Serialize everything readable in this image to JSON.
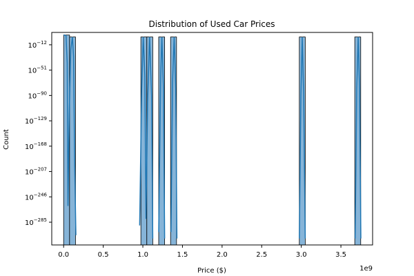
{
  "chart_data": {
    "type": "bar",
    "subtype": "histogram-with-kde",
    "title": "Distribution of Used Car Prices",
    "xlabel": "Price ($)",
    "ylabel": "Count",
    "x_offset_label": "1e9",
    "y_scale": "log",
    "xlim": [
      -150000000,
      3900000000
    ],
    "ylim_log10": [
      -320,
      7
    ],
    "x_ticks": [
      {
        "value": 0,
        "label": "0.0"
      },
      {
        "value": 500000000,
        "label": "0.5"
      },
      {
        "value": 1000000000,
        "label": "1.0"
      },
      {
        "value": 1500000000,
        "label": "1.5"
      },
      {
        "value": 2000000000,
        "label": "2.0"
      },
      {
        "value": 2500000000,
        "label": "2.5"
      },
      {
        "value": 3000000000,
        "label": "3.0"
      },
      {
        "value": 3500000000,
        "label": "3.5"
      }
    ],
    "y_ticks": [
      {
        "exp": -12,
        "base": "10",
        "label": "−12"
      },
      {
        "exp": -51,
        "base": "10",
        "label": "−51"
      },
      {
        "exp": -90,
        "base": "10",
        "label": "−90"
      },
      {
        "exp": -129,
        "base": "10",
        "label": "−129"
      },
      {
        "exp": -168,
        "base": "10",
        "label": "−168"
      },
      {
        "exp": -207,
        "base": "10",
        "label": "−207"
      },
      {
        "exp": -246,
        "base": "10",
        "label": "−246"
      },
      {
        "exp": -285,
        "base": "10",
        "label": "−285"
      }
    ],
    "bins": [
      {
        "x0": 0,
        "x1": 75000000,
        "count": 1000
      },
      {
        "x0": 75000000,
        "x1": 150000000,
        "count": 1
      },
      {
        "x0": 975000000,
        "x1": 1050000000,
        "count": 1
      },
      {
        "x0": 1050000000,
        "x1": 1125000000,
        "count": 1
      },
      {
        "x0": 1200000000,
        "x1": 1275000000,
        "count": 1
      },
      {
        "x0": 1350000000,
        "x1": 1425000000,
        "count": 1
      },
      {
        "x0": 2975000000,
        "x1": 3050000000,
        "count": 1
      },
      {
        "x0": 3675000000,
        "x1": 3750000000,
        "count": 1
      }
    ],
    "kde_segments": [
      [
        [
          0,
          1000
        ],
        [
          18000000,
          500
        ],
        [
          30000000,
          100
        ],
        [
          45000000,
          1e-40
        ],
        [
          55000000,
          1e-260
        ],
        [
          70000000,
          1e-120
        ],
        [
          90000000,
          1e-20
        ],
        [
          110000000,
          1
        ],
        [
          125000000,
          1e-30
        ],
        [
          140000000,
          1e-200
        ],
        [
          155000000,
          1e-305
        ]
      ],
      [
        [
          960000000,
          1e-290
        ],
        [
          985000000,
          1e-80
        ],
        [
          1005000000,
          1
        ],
        [
          1025000000,
          1e-60
        ],
        [
          1040000000,
          1e-280
        ],
        [
          1060000000,
          1e-100
        ],
        [
          1085000000,
          1
        ],
        [
          1110000000,
          1e-90
        ],
        [
          1125000000,
          1e-310
        ]
      ],
      [
        [
          1200000000,
          1e-300
        ],
        [
          1225000000,
          1e-60
        ],
        [
          1240000000,
          1
        ],
        [
          1260000000,
          1e-80
        ],
        [
          1275000000,
          1e-310
        ]
      ],
      [
        [
          1355000000,
          1e-300
        ],
        [
          1375000000,
          1e-70
        ],
        [
          1395000000,
          1
        ],
        [
          1415000000,
          1e-80
        ],
        [
          1430000000,
          1e-310
        ]
      ],
      [
        [
          2975000000,
          1e-310
        ],
        [
          2995000000,
          1e-90
        ],
        [
          3012000000,
          1
        ],
        [
          3030000000,
          1e-90
        ],
        [
          3050000000,
          1e-310
        ]
      ],
      [
        [
          3680000000,
          1e-310
        ],
        [
          3700000000,
          1e-80
        ],
        [
          3718000000,
          1
        ],
        [
          3735000000,
          1e-80
        ],
        [
          3752000000,
          1e-310
        ]
      ]
    ],
    "grid": false,
    "legend": "none",
    "colors": {
      "bar_fill": "#86b4d8",
      "bar_edge": "#000000",
      "kde_line": "#1f77b4"
    }
  }
}
